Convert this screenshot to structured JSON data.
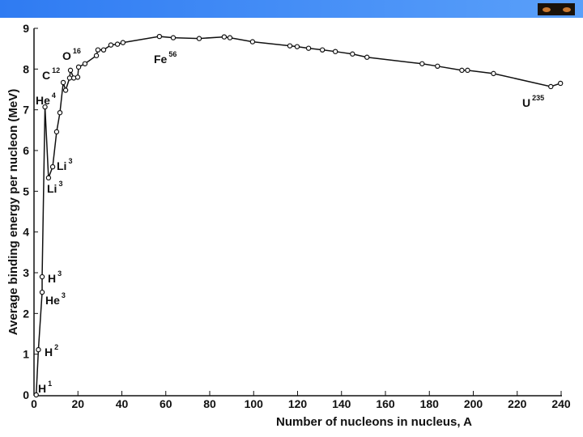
{
  "chart_data": {
    "type": "line",
    "xlabel": "Number of nucleons in nucleus, A",
    "ylabel": "Average binding energy per nucleon (MeV)",
    "x": [
      1,
      2,
      3.7,
      3.7,
      5,
      6.6,
      8.5,
      10.3,
      11.8,
      13.3,
      14.4,
      16.2,
      16.6,
      18.1,
      19.9,
      20.3,
      23.2,
      28.4,
      29.1,
      31.7,
      35,
      38,
      40.5,
      57.1,
      63.4,
      75.2,
      86.6,
      89.2,
      99.5,
      116.5,
      119.8,
      125,
      131.3,
      137.2,
      145,
      151.6,
      176.7,
      183.7,
      194.8,
      197.4,
      209.2,
      235.3,
      239.7
    ],
    "series": [
      {
        "color": "#111111",
        "values": [
          0,
          1.11,
          2.52,
          2.9,
          7.07,
          5.33,
          5.6,
          6.46,
          6.93,
          7.67,
          7.48,
          7.78,
          7.97,
          7.78,
          7.8,
          8.05,
          8.13,
          8.33,
          8.47,
          8.47,
          8.59,
          8.61,
          8.65,
          8.8,
          8.77,
          8.75,
          8.79,
          8.77,
          8.67,
          8.57,
          8.55,
          8.51,
          8.47,
          8.43,
          8.37,
          8.29,
          8.13,
          8.07,
          7.97,
          7.97,
          7.89,
          7.57,
          7.65
        ]
      }
    ],
    "annotations": [
      {
        "text": "H",
        "sup": "1"
      },
      {
        "text": "H",
        "sup": "2"
      },
      {
        "text": "He",
        "sup": "3"
      },
      {
        "text": "H",
        "sup": "3"
      },
      {
        "text": "He",
        "sup": "4"
      },
      {
        "text": "Li",
        "sup": "3"
      },
      {
        "text": "Li",
        "sup": "3"
      },
      {
        "text": "C",
        "sup": "12"
      },
      {
        "text": "O",
        "sup": "16"
      },
      {
        "text": "Fe",
        "sup": "56"
      },
      {
        "text": "U",
        "sup": "235"
      }
    ],
    "xlim": [
      0,
      240
    ],
    "xticks": [
      0,
      20,
      40,
      60,
      80,
      100,
      120,
      140,
      160,
      180,
      200,
      220,
      240
    ],
    "ylim": [
      0,
      9
    ],
    "yticks": [
      0,
      1,
      2,
      3,
      4,
      5,
      6,
      7,
      8,
      9
    ]
  }
}
